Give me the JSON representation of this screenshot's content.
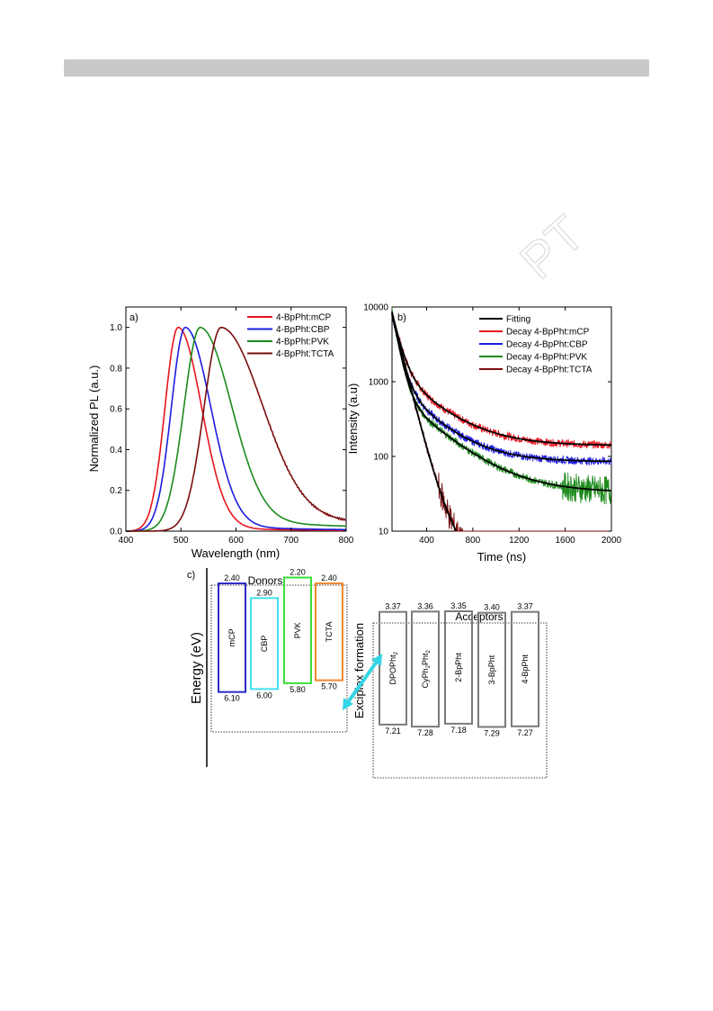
{
  "watermark_text": "PT",
  "chart_data": [
    {
      "type": "line",
      "panel_label": "a)",
      "xlabel": "Wavelength (nm)",
      "ylabel": "Normalized PL (a.u.)",
      "xlim": [
        400,
        800
      ],
      "ylim": [
        0,
        1.1
      ],
      "xticks": [
        "400",
        "500",
        "600",
        "700",
        "800"
      ],
      "yticks": [
        "0.0",
        "0.2",
        "0.4",
        "0.6",
        "0.8",
        "1.0"
      ],
      "legend_position": "top-right",
      "series": [
        {
          "name": "4-BpPht:mCP",
          "color": "#e8141c",
          "peak": 495,
          "w_left": 34,
          "w_right": 60,
          "tail": 0.02,
          "tail_w": 60
        },
        {
          "name": "4-BpPht:CBP",
          "color": "#1c1ce0",
          "peak": 508,
          "w_left": 36,
          "w_right": 65,
          "tail": 0.03,
          "tail_w": 70
        },
        {
          "name": "4-BpPht:PVK",
          "color": "#1c8a1c",
          "peak": 535,
          "w_left": 42,
          "w_right": 80,
          "tail": 0.06,
          "tail_w": 100
        },
        {
          "name": "4-BpPht:TCTA",
          "color": "#7a0e0e",
          "peak": 573,
          "w_left": 44,
          "w_right": 105,
          "tail": 0.08,
          "tail_w": 140
        }
      ]
    },
    {
      "type": "line",
      "panel_label": "b)",
      "xlabel": "Time (ns)",
      "ylabel": "Intensity (a.u)",
      "xlim": [
        100,
        2000
      ],
      "ylim": [
        10,
        10000
      ],
      "y_scale": "log",
      "xticks": [
        "400",
        "800",
        "1200",
        "1600",
        "2000"
      ],
      "yticks": [
        "10",
        "100",
        "1000",
        "10000"
      ],
      "legend_position": "top-right",
      "series": [
        {
          "name": "Fitting",
          "color": "#000000"
        },
        {
          "name": "Decay 4-BpPht:mCP",
          "color": "#e8141c",
          "a1": 7000,
          "t1": 60,
          "a2": 1300,
          "t2": 300,
          "c": 140
        },
        {
          "name": "Decay 4-BpPht:CBP",
          "color": "#1c1ce0",
          "a1": 7000,
          "t1": 55,
          "a2": 900,
          "t2": 280,
          "c": 85
        },
        {
          "name": "Decay 4-BpPht:PVK",
          "color": "#1c8a1c",
          "a1": 8000,
          "t1": 50,
          "a2": 700,
          "t2": 320,
          "c": 33
        },
        {
          "name": "Decay 4-BpPht:TCTA",
          "color": "#7a0e0e",
          "a1": 8000,
          "t1": 70,
          "a2": 100,
          "t2": 200,
          "c": 1
        }
      ]
    }
  ],
  "energy_diagram": {
    "panel_label": "c)",
    "axis_label": "Energy (eV)",
    "donors_title": "Donors",
    "acceptors_title": "Acceptors",
    "exciplex_label": "Exciplex formation",
    "donors": [
      {
        "name": "mCP",
        "lumo": "2.40",
        "homo": "6.10",
        "color": "#2b2bc8"
      },
      {
        "name": "CBP",
        "lumo": "2.90",
        "homo": "6.00",
        "color": "#3fe0f0"
      },
      {
        "name": "PVK",
        "lumo": "2.20",
        "homo": "5.80",
        "color": "#3ae03a"
      },
      {
        "name": "TCTA",
        "lumo": "2.40",
        "homo": "5.70",
        "color": "#f08a30"
      }
    ],
    "acceptors": [
      {
        "name": "DPOPht",
        "sub": "2",
        "lumo": "3.37",
        "homo": "7.21"
      },
      {
        "name": "CyPh",
        "sub": "2",
        "name2": "Pht",
        "sub2": "2",
        "lumo": "3.36",
        "homo": "7.28"
      },
      {
        "name": "2-BpPht",
        "lumo": "3.35",
        "homo": "7.18"
      },
      {
        "name": "3-BpPht",
        "lumo": "3.40",
        "homo": "7.29"
      },
      {
        "name": "4-BpPht",
        "lumo": "3.37",
        "homo": "7.27"
      }
    ]
  }
}
